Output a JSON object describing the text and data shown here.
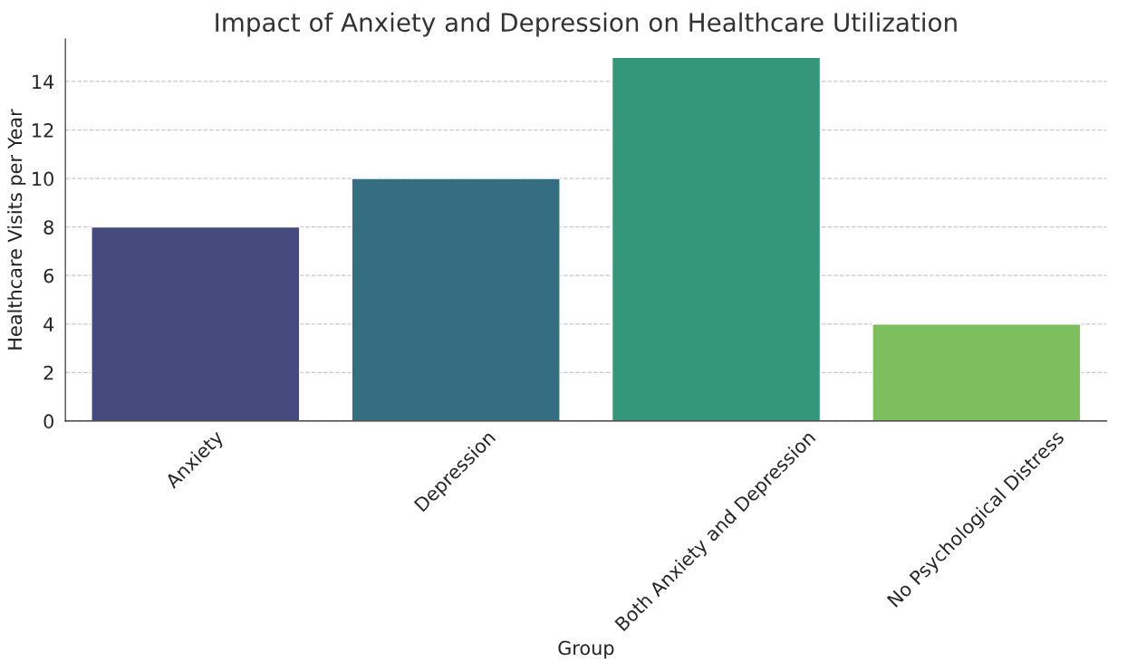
{
  "chart_data": {
    "type": "bar",
    "title": "Impact of Anxiety and Depression on Healthcare Utilization",
    "xlabel": "Group",
    "ylabel": "Healthcare Visits per Year",
    "categories": [
      "Anxiety",
      "Depression",
      "Both Anxiety and Depression",
      "No Psychological Distress"
    ],
    "values": [
      8,
      10,
      15,
      4
    ],
    "colors": [
      "#464b7d",
      "#346e80",
      "#35977a",
      "#7dbe5f"
    ],
    "ylim": [
      0,
      15.75
    ],
    "yticks": [
      0,
      2,
      4,
      6,
      8,
      10,
      12,
      14
    ],
    "grid": "y"
  }
}
